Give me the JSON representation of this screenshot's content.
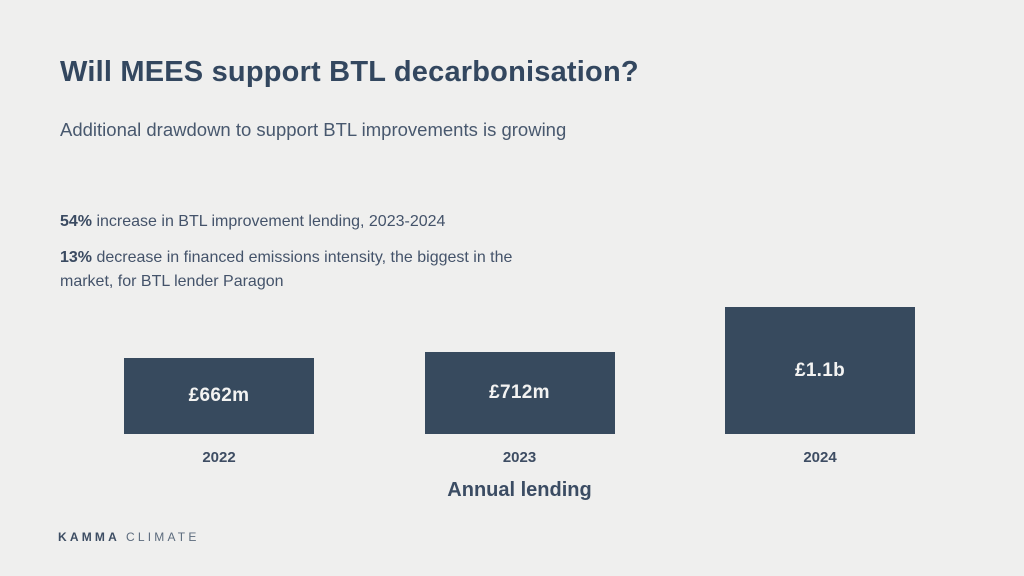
{
  "slide": {
    "title": "Will MEES support BTL decarbonisation?",
    "subtitle": "Additional drawdown to support BTL improvements is growing",
    "stats": [
      {
        "highlight": "54%",
        "text": " increase in BTL  improvement lending, 2023-2024"
      },
      {
        "highlight": "13%",
        "text": " decrease in financed emissions intensity, the biggest in the market, for BTL lender Paragon"
      }
    ],
    "footer": {
      "brand_primary": "KAMMA",
      "brand_secondary": "CLIMATE"
    }
  },
  "chart_data": {
    "type": "bar",
    "categories": [
      "2022",
      "2023",
      "2024"
    ],
    "values": [
      662,
      712,
      1100
    ],
    "unit": "millions GBP",
    "value_labels": [
      "£662m",
      "£712m",
      "£1.1b"
    ],
    "title": "",
    "xlabel": "Annual lending",
    "ylabel": "",
    "ylim": [
      0,
      1100
    ],
    "grid": false,
    "legend": false,
    "bar_color": "#374a5e",
    "bar_label_color": "#f3f3f2",
    "background_color": "#efefee"
  }
}
